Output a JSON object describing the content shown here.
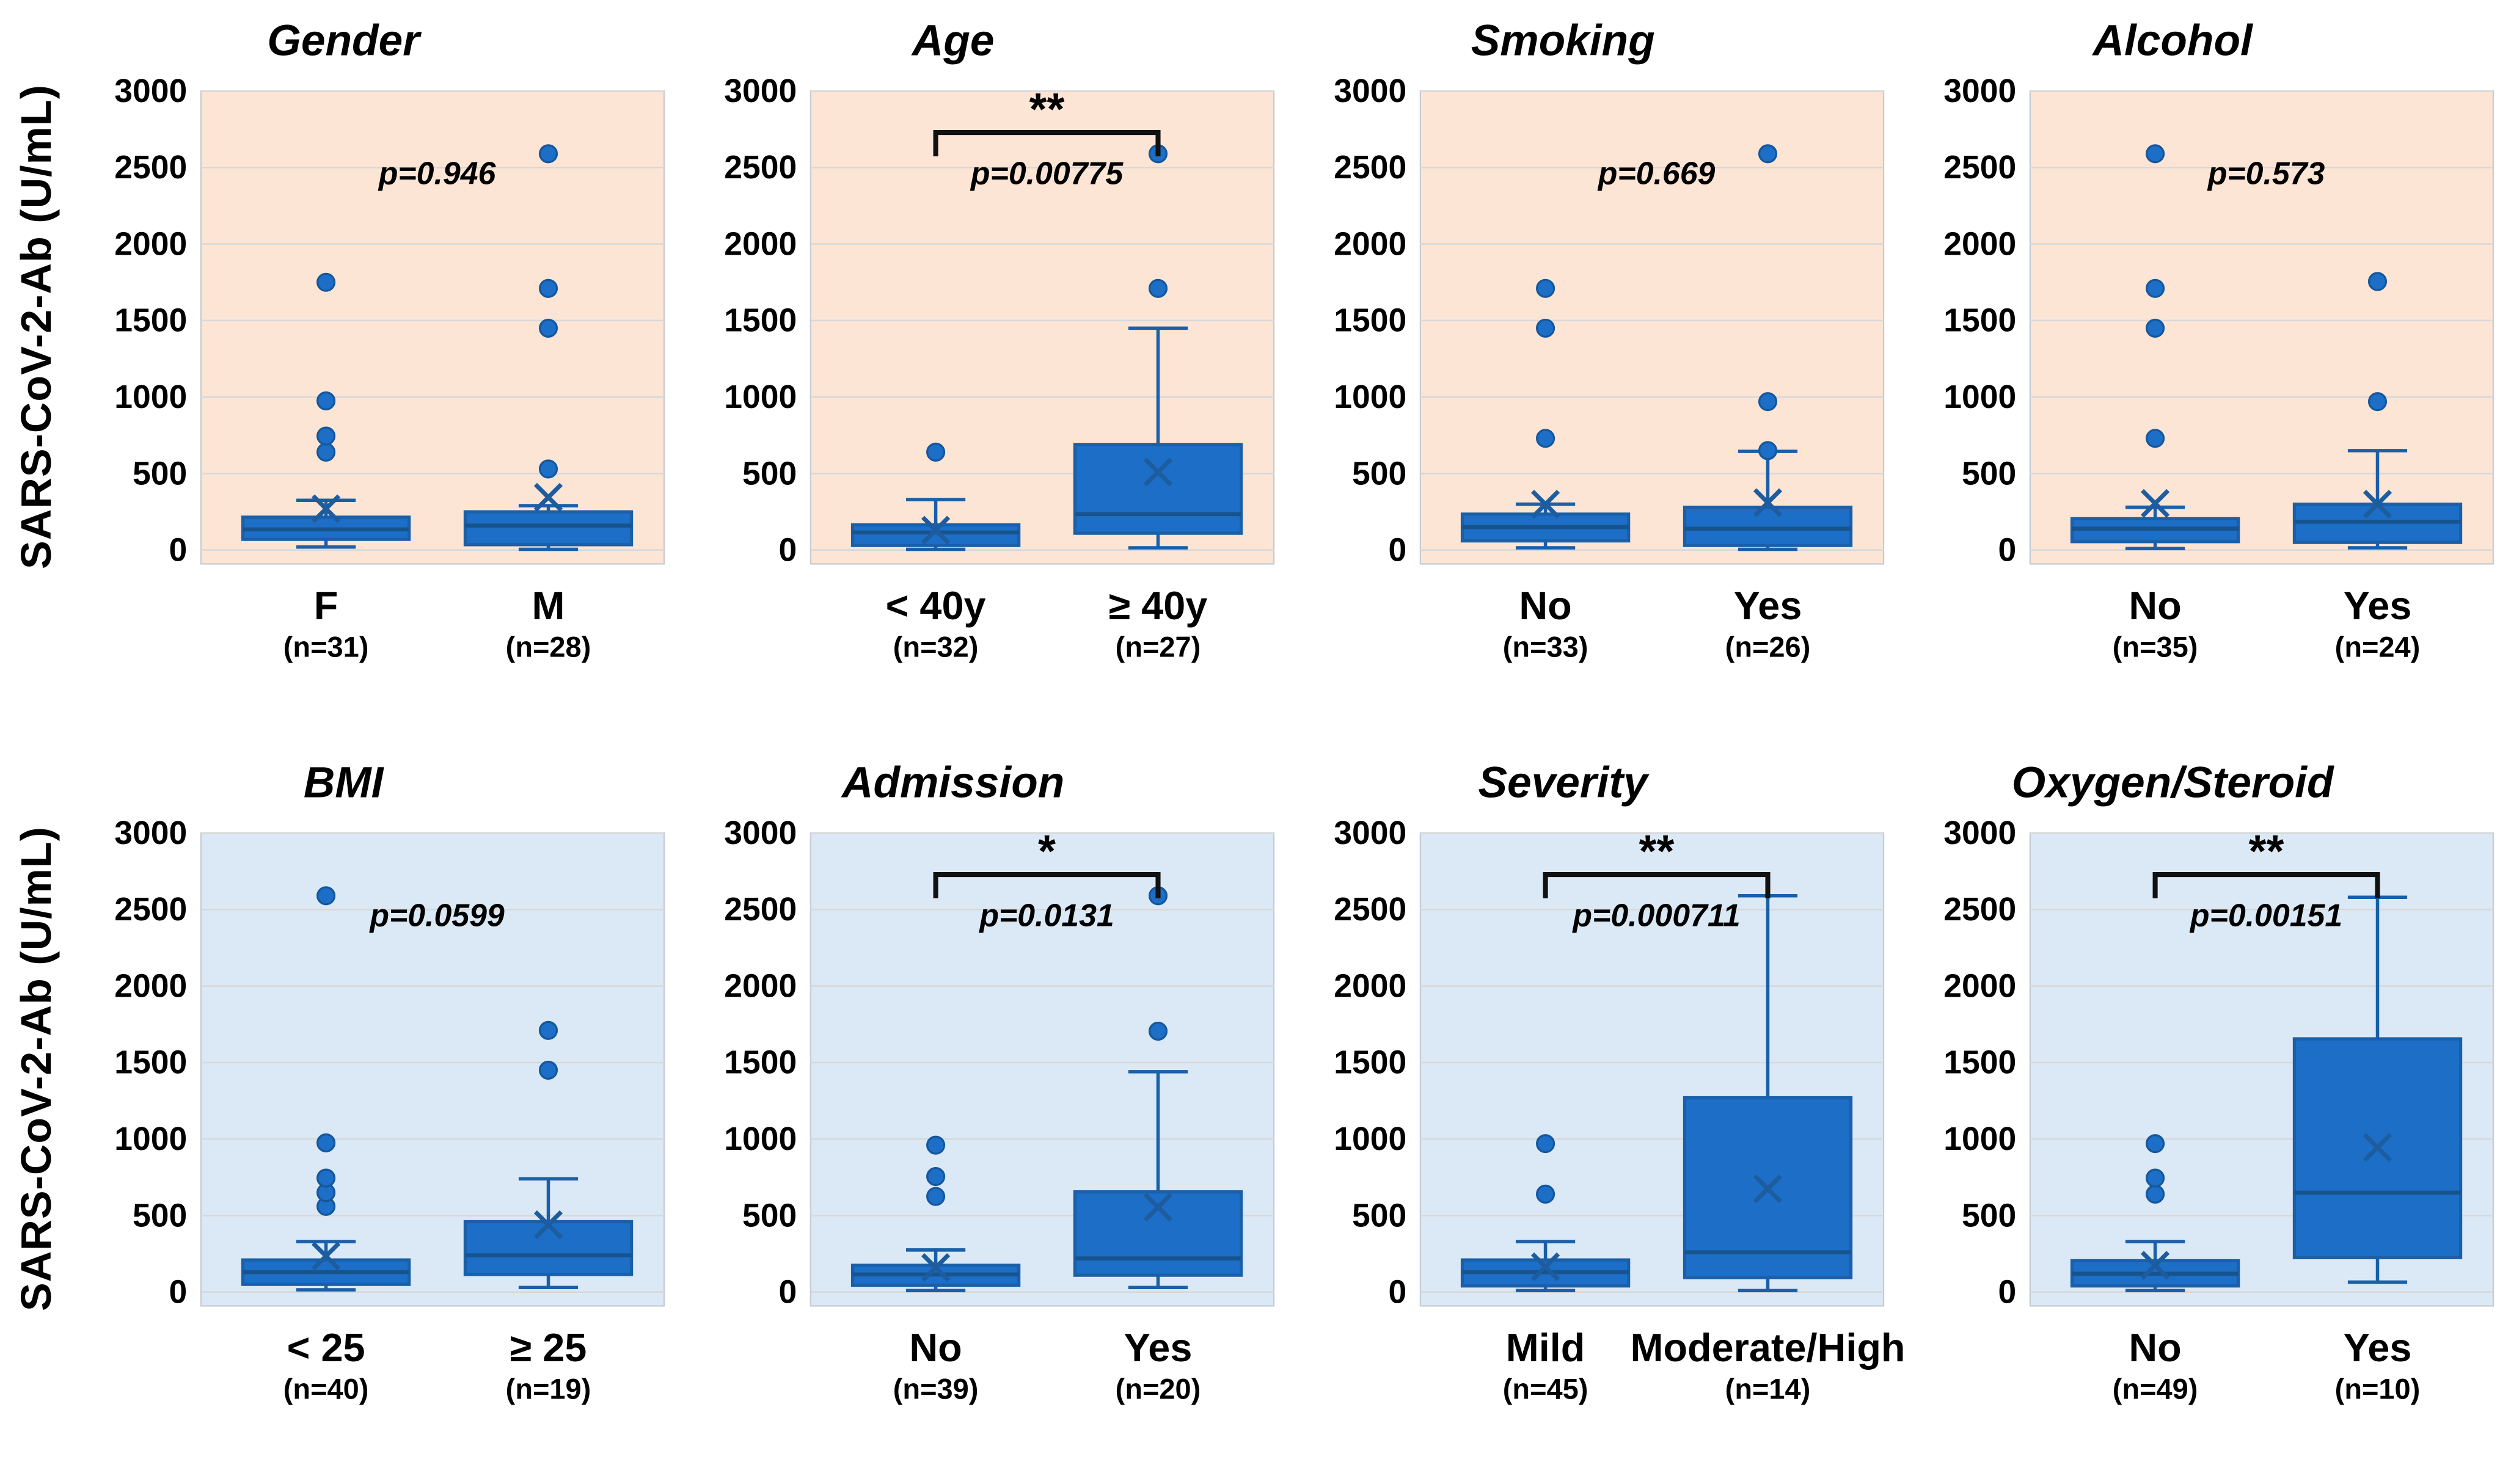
{
  "styles": {
    "row1_background": "#fce5d5",
    "row2_background": "#dbe9f6",
    "gridline_color": "#d8d8d8",
    "panel_border_color": "#c5ccd3",
    "box_fill": "#1c6ec6",
    "box_stroke": "#1a5fa8",
    "median_color": "#17538c",
    "whisker_color": "#1a5fa8",
    "mean_marker_color": "#1d5c9e",
    "outlier_fill": "#1c6ec6",
    "outlier_stroke": "#15579c",
    "bracket_color": "#111111",
    "text_color": "#000000"
  },
  "chart_data": {
    "type": "boxplot",
    "ylabel": "SARS-CoV-2-Ab (U/mL)",
    "ylim": [
      0,
      3000
    ],
    "yticks": [
      0,
      500,
      1000,
      1500,
      2000,
      2500,
      3000
    ],
    "grid": true,
    "legend": "none",
    "rows": [
      {
        "background": "#fce5d5",
        "panels": [
          {
            "title": "Gender",
            "p_label": "p=0.946",
            "significance": "",
            "groups": [
              {
                "label": "F",
                "n_label": "(n=31)",
                "whisker_low": 20,
                "q1": 70,
                "median": 135,
                "q3": 215,
                "whisker_high": 325,
                "mean": 270,
                "outliers": [
                  640,
                  745,
                  975,
                  1750
                ]
              },
              {
                "label": "M",
                "n_label": "(n=28)",
                "whisker_low": 5,
                "q1": 35,
                "median": 160,
                "q3": 250,
                "whisker_high": 290,
                "mean": 345,
                "outliers": [
                  530,
                  1450,
                  1710,
                  2590
                ]
              }
            ]
          },
          {
            "title": "Age",
            "p_label": "p=0.00775",
            "significance": "**",
            "groups": [
              {
                "label": "< 40y",
                "n_label": "(n=32)",
                "whisker_low": 5,
                "q1": 30,
                "median": 115,
                "q3": 165,
                "whisker_high": 330,
                "mean": 130,
                "outliers": [
                  640
                ]
              },
              {
                "label": "≥ 40y",
                "n_label": "(n=27)",
                "whisker_low": 15,
                "q1": 110,
                "median": 235,
                "q3": 690,
                "whisker_high": 1450,
                "mean": 510,
                "outliers": [
                  1710,
                  2590
                ]
              }
            ]
          },
          {
            "title": "Smoking",
            "p_label": "p=0.669",
            "significance": "",
            "groups": [
              {
                "label": "No",
                "n_label": "(n=33)",
                "whisker_low": 15,
                "q1": 60,
                "median": 150,
                "q3": 235,
                "whisker_high": 300,
                "mean": 300,
                "outliers": [
                  730,
                  1450,
                  1710
                ]
              },
              {
                "label": "Yes",
                "n_label": "(n=26)",
                "whisker_low": 5,
                "q1": 30,
                "median": 140,
                "q3": 280,
                "whisker_high": 645,
                "mean": 310,
                "outliers": [
                  650,
                  970,
                  2590
                ]
              }
            ]
          },
          {
            "title": "Alcohol",
            "p_label": "p=0.573",
            "significance": "",
            "groups": [
              {
                "label": "No",
                "n_label": "(n=35)",
                "whisker_low": 10,
                "q1": 55,
                "median": 140,
                "q3": 205,
                "whisker_high": 280,
                "mean": 305,
                "outliers": [
                  730,
                  1450,
                  1710,
                  2590
                ]
              },
              {
                "label": "Yes",
                "n_label": "(n=24)",
                "whisker_low": 15,
                "q1": 50,
                "median": 185,
                "q3": 300,
                "whisker_high": 650,
                "mean": 300,
                "outliers": [
                  970,
                  1755
                ]
              }
            ]
          }
        ]
      },
      {
        "background": "#dbe9f6",
        "panels": [
          {
            "title": "BMI",
            "p_label": "p=0.0599",
            "significance": "",
            "groups": [
              {
                "label": "< 25",
                "n_label": "(n=40)",
                "whisker_low": 15,
                "q1": 50,
                "median": 130,
                "q3": 210,
                "whisker_high": 330,
                "mean": 235,
                "outliers": [
                  560,
                  650,
                  745,
                  975,
                  2590
                ]
              },
              {
                "label": "≥ 25",
                "n_label": "(n=19)",
                "whisker_low": 30,
                "q1": 115,
                "median": 240,
                "q3": 460,
                "whisker_high": 740,
                "mean": 440,
                "outliers": [
                  1450,
                  1710
                ]
              }
            ]
          },
          {
            "title": "Admission",
            "p_label": "p=0.0131",
            "significance": "*",
            "groups": [
              {
                "label": "No",
                "n_label": "(n=39)",
                "whisker_low": 10,
                "q1": 45,
                "median": 115,
                "q3": 175,
                "whisker_high": 275,
                "mean": 160,
                "outliers": [
                  625,
                  755,
                  960
                ]
              },
              {
                "label": "Yes",
                "n_label": "(n=20)",
                "whisker_low": 30,
                "q1": 110,
                "median": 220,
                "q3": 655,
                "whisker_high": 1440,
                "mean": 555,
                "outliers": [
                  1705,
                  2590
                ]
              }
            ]
          },
          {
            "title": "Severity",
            "p_label": "p=0.000711",
            "significance": "**",
            "groups": [
              {
                "label": "Mild",
                "n_label": "(n=45)",
                "whisker_low": 10,
                "q1": 40,
                "median": 130,
                "q3": 210,
                "whisker_high": 330,
                "mean": 165,
                "outliers": [
                  640,
                  970
                ]
              },
              {
                "label": "Moderate/High",
                "n_label": "(n=14)",
                "whisker_low": 10,
                "q1": 95,
                "median": 260,
                "q3": 1270,
                "whisker_high": 2590,
                "mean": 675,
                "outliers": []
              }
            ]
          },
          {
            "title": "Oxygen/Steroid",
            "p_label": "p=0.00151",
            "significance": "**",
            "groups": [
              {
                "label": "No",
                "n_label": "(n=49)",
                "whisker_low": 10,
                "q1": 40,
                "median": 120,
                "q3": 205,
                "whisker_high": 330,
                "mean": 175,
                "outliers": [
                  640,
                  745,
                  970
                ]
              },
              {
                "label": "Yes",
                "n_label": "(n=10)",
                "whisker_low": 65,
                "q1": 225,
                "median": 650,
                "q3": 1655,
                "whisker_high": 2580,
                "mean": 945,
                "outliers": []
              }
            ]
          }
        ]
      }
    ]
  }
}
